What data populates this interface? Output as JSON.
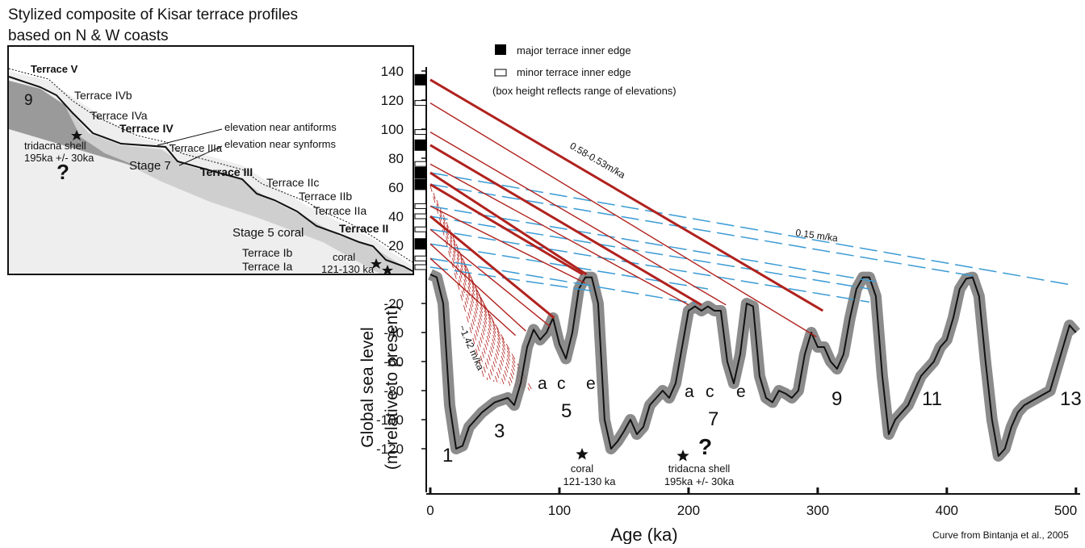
{
  "inset": {
    "title_lines": [
      "Stylized composite of Kisar terrace profiles",
      "based on N & W coasts"
    ],
    "labels": [
      "Terrace V",
      "9",
      "Terrace IVb",
      "Terrace IVa",
      "Terrace IV",
      "elevation near antiforms",
      "elevation near synforms",
      "Terrace IIIa",
      "tridacna shell",
      "195ka +/- 30ka",
      "?",
      "Stage 7",
      "Terrace III",
      "Terrace IIc",
      "Terrace IIb",
      "Terrace IIa",
      "Terrace II",
      "Stage 5 coral",
      "Terrace Ib",
      "coral",
      "Terrace Ia",
      "121-130 ka"
    ]
  },
  "chart_data": {
    "type": "line",
    "xlabel": "Age (ka)",
    "ylabel_lines": [
      "Global sea level",
      "(m relative to present)"
    ],
    "color": "#111111",
    "x": [
      0,
      5,
      10,
      15,
      20,
      25,
      30,
      40,
      50,
      60,
      65,
      70,
      75,
      80,
      85,
      90,
      95,
      100,
      105,
      110,
      115,
      120,
      125,
      130,
      135,
      140,
      145,
      150,
      155,
      160,
      165,
      170,
      175,
      180,
      185,
      190,
      195,
      200,
      205,
      210,
      215,
      220,
      225,
      230,
      235,
      240,
      245,
      250,
      255,
      260,
      265,
      270,
      275,
      280,
      285,
      290,
      295,
      300,
      305,
      310,
      315,
      320,
      325,
      330,
      335,
      340,
      345,
      350,
      355,
      360,
      365,
      370,
      375,
      380,
      385,
      390,
      395,
      400,
      405,
      410,
      415,
      420,
      425,
      430,
      435,
      440,
      445,
      450,
      455,
      460,
      470,
      480,
      490,
      495,
      500
    ],
    "values": [
      0,
      -2,
      -20,
      -90,
      -120,
      -118,
      -105,
      -95,
      -88,
      -85,
      -90,
      -75,
      -50,
      -38,
      -45,
      -40,
      -30,
      -48,
      -58,
      -40,
      -10,
      -2,
      -2,
      -20,
      -100,
      -120,
      -115,
      -108,
      -100,
      -110,
      -105,
      -90,
      -85,
      -80,
      -85,
      -75,
      -50,
      -25,
      -22,
      -25,
      -22,
      -25,
      -25,
      -60,
      -75,
      -55,
      -20,
      -22,
      -70,
      -85,
      -88,
      -80,
      -82,
      -85,
      -80,
      -55,
      -40,
      -50,
      -50,
      -60,
      -65,
      -55,
      -30,
      -10,
      -2,
      -2,
      -15,
      -70,
      -110,
      -100,
      -95,
      -90,
      -80,
      -70,
      -65,
      -60,
      -50,
      -45,
      -30,
      -10,
      -3,
      -2,
      -15,
      -60,
      -100,
      -125,
      -120,
      -105,
      -95,
      -90,
      -85,
      -80,
      -50,
      -35,
      -40
    ],
    "xlim": [
      0,
      502
    ],
    "ylim": [
      -150,
      140
    ],
    "xticks": [
      0,
      100,
      200,
      300,
      400,
      500
    ],
    "yticks": [
      -120,
      -100,
      -80,
      -60,
      -40,
      -20,
      20,
      40,
      60,
      80,
      100,
      120,
      140
    ],
    "terraces": [
      {
        "name": "major terrace inner edge",
        "color": "#000000",
        "values": [
          134,
          89,
          70,
          62,
          21
        ]
      },
      {
        "name": "minor terrace inner edge",
        "color": "#ffffff",
        "values": [
          118,
          98,
          76,
          47,
          40,
          31,
          11,
          5
        ]
      }
    ],
    "legend_note": "(box height reflects range of elevations)",
    "uplift_lines": [
      {
        "start": 134,
        "end_age": 304,
        "end_level": -25
      },
      {
        "start": 118,
        "end_age": 299,
        "end_level": -43
      },
      {
        "start": 98,
        "end_age": 229,
        "end_level": -21
      },
      {
        "start": 89,
        "end_age": 210,
        "end_level": -21
      },
      {
        "start": 76,
        "end_age": 200,
        "end_level": -21
      },
      {
        "start": 70,
        "end_age": 121,
        "end_level": 0
      },
      {
        "start": 62,
        "end_age": 118,
        "end_level": 0
      },
      {
        "start": 47,
        "end_age": 120,
        "end_level": -6
      },
      {
        "start": 40,
        "end_age": 96,
        "end_level": -30
      },
      {
        "start": 31,
        "end_age": 93,
        "end_level": -36
      },
      {
        "start": 21,
        "end_age": 74,
        "end_level": -39
      },
      {
        "start": 11,
        "end_age": 66,
        "end_level": -42
      }
    ],
    "regional_lines": [
      {
        "start": 70,
        "end_age": 495,
        "end_level": -7
      },
      {
        "start": 62,
        "end_age": 420,
        "end_level": -1
      },
      {
        "start": 47,
        "end_age": 345,
        "end_level": -5
      },
      {
        "start": 40,
        "end_age": 340,
        "end_level": -10
      },
      {
        "start": 31,
        "end_age": 340,
        "end_level": -19
      },
      {
        "start": 21,
        "end_age": 215,
        "end_level": -10
      },
      {
        "start": 11,
        "end_age": 205,
        "end_level": -20
      },
      {
        "start": 5,
        "end_age": 130,
        "end_level": -12
      }
    ],
    "uplift_color": "#b0221e",
    "regional_color": "#3a9bd5",
    "annotations": [
      "1",
      "3",
      "a",
      "c",
      "e",
      "5",
      "a",
      "c",
      "e",
      "7",
      "9",
      "11",
      "13",
      "coral",
      "121-130 ka",
      "?",
      "tridacna shell",
      "195ka +/- 30ka",
      "0.58-0.53m/ka",
      "0.15 m/ka",
      "~1.42 m/ka",
      "Curve from Bintanja et al., 2005"
    ]
  }
}
